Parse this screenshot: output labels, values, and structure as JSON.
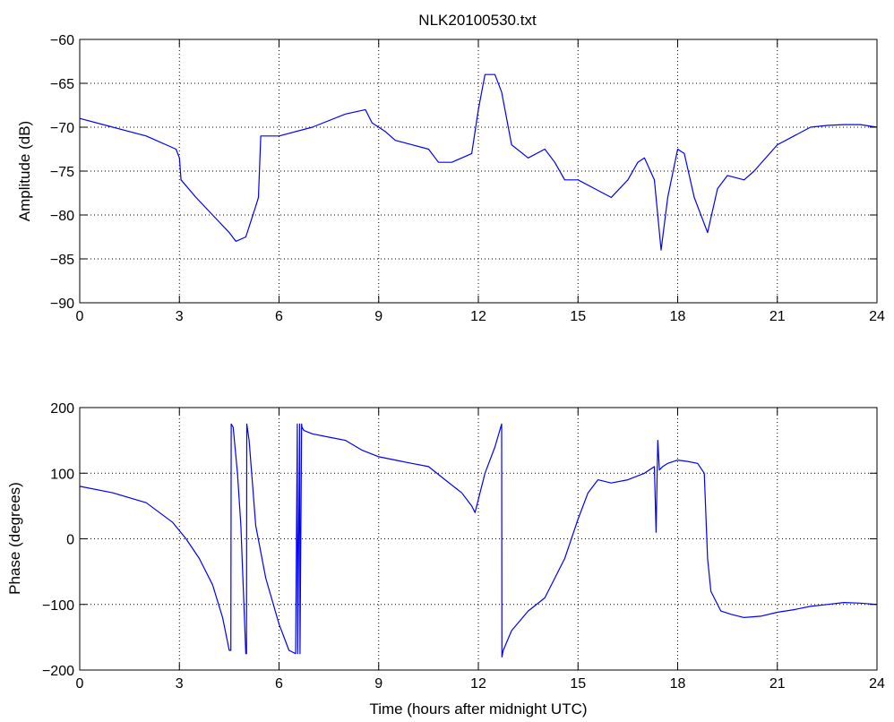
{
  "title": "NLK20100530.txt",
  "line_color": "#0000ff",
  "chart_data": [
    {
      "type": "line",
      "title": "NLK20100530.txt",
      "xlabel": "",
      "ylabel": "Amplitude (dB)",
      "xlim": [
        0,
        24
      ],
      "ylim": [
        -90,
        -60
      ],
      "xticks": [
        "0",
        "3",
        "6",
        "9",
        "12",
        "15",
        "18",
        "21",
        "24"
      ],
      "yticks": [
        "-90",
        "-85",
        "-80",
        "-75",
        "-70",
        "-65",
        "-60"
      ],
      "grid": true,
      "series": [
        {
          "x": [
            0,
            1,
            2,
            2.9,
            3.0,
            3.05,
            3.5,
            4.0,
            4.5,
            4.7,
            5.0,
            5.3,
            5.38,
            5.45,
            6,
            7,
            8,
            8.6,
            8.8,
            9.2,
            9.5,
            10,
            10.5,
            10.8,
            11.2,
            11.5,
            11.8,
            12.0,
            12.2,
            12.5,
            12.7,
            13.0,
            13.5,
            14.0,
            14.3,
            14.6,
            15.0,
            15.5,
            16.0,
            16.5,
            16.8,
            17.0,
            17.3,
            17.5,
            17.7,
            18.0,
            18.2,
            18.5,
            18.9,
            19.2,
            19.5,
            20.0,
            20.3,
            21.0,
            21.5,
            22.0,
            22.5,
            23.0,
            23.5,
            24.0
          ],
          "y": [
            -69,
            -70,
            -71,
            -72.5,
            -73.5,
            -76,
            -78,
            -80,
            -82,
            -83,
            -82.5,
            -79,
            -78,
            -71,
            -71,
            -70,
            -68.5,
            -68,
            -69.5,
            -70.5,
            -71.5,
            -72,
            -72.5,
            -74,
            -74,
            -73.5,
            -73,
            -68,
            -64,
            -64,
            -66,
            -72,
            -73.5,
            -72.5,
            -74,
            -76,
            -76,
            -77,
            -78,
            -76,
            -74,
            -73.5,
            -76,
            -84,
            -78,
            -72.5,
            -73,
            -78,
            -82,
            -77,
            -75.5,
            -76,
            -75,
            -72,
            -71,
            -70,
            -69.8,
            -69.7,
            -69.7,
            -70
          ]
        }
      ]
    },
    {
      "type": "line",
      "title": "",
      "xlabel": "Time (hours after midnight UTC)",
      "ylabel": "Phase (degrees)",
      "xlim": [
        0,
        24
      ],
      "ylim": [
        -200,
        200
      ],
      "xticks": [
        "0",
        "3",
        "6",
        "9",
        "12",
        "15",
        "18",
        "21",
        "24"
      ],
      "yticks": [
        "-200",
        "-100",
        "0",
        "100",
        "200"
      ],
      "grid": true,
      "series": [
        {
          "x": [
            0,
            1,
            2,
            2.8,
            3.2,
            3.6,
            4.0,
            4.3,
            4.5,
            4.55,
            4.56,
            4.62,
            4.75,
            4.85,
            5.0,
            5.02,
            5.03,
            5.1,
            5.3,
            5.6,
            6.0,
            6.3,
            6.5,
            6.55,
            6.56,
            6.62,
            6.63,
            6.68,
            6.69,
            6.75,
            7.0,
            7.5,
            8.0,
            8.5,
            9.0,
            9.5,
            10.0,
            10.5,
            11.0,
            11.5,
            11.8,
            11.9,
            12.0,
            12.2,
            12.5,
            12.7,
            12.71,
            12.75,
            13.0,
            13.5,
            14.0,
            14.3,
            14.6,
            15.0,
            15.3,
            15.6,
            16.0,
            16.5,
            17.0,
            17.3,
            17.35,
            17.4,
            17.45,
            17.55,
            17.7,
            18.0,
            18.3,
            18.6,
            18.8,
            18.9,
            19.0,
            19.3,
            19.6,
            20.0,
            20.5,
            21.0,
            21.5,
            22.0,
            22.5,
            23.0,
            23.5,
            24.0
          ],
          "y": [
            80,
            70,
            55,
            25,
            0,
            -30,
            -70,
            -120,
            -170,
            -170,
            175,
            170,
            100,
            20,
            -175,
            -175,
            175,
            150,
            20,
            -60,
            -130,
            -170,
            -175,
            175,
            -175,
            175,
            -175,
            175,
            170,
            165,
            160,
            155,
            150,
            135,
            125,
            120,
            115,
            110,
            90,
            70,
            50,
            40,
            60,
            100,
            140,
            175,
            -180,
            -170,
            -140,
            -110,
            -90,
            -60,
            -30,
            30,
            70,
            90,
            85,
            90,
            100,
            110,
            10,
            150,
            105,
            110,
            115,
            120,
            118,
            115,
            100,
            -30,
            -80,
            -110,
            -115,
            -120,
            -118,
            -112,
            -108,
            -103,
            -100,
            -97,
            -98,
            -100
          ]
        }
      ]
    }
  ]
}
